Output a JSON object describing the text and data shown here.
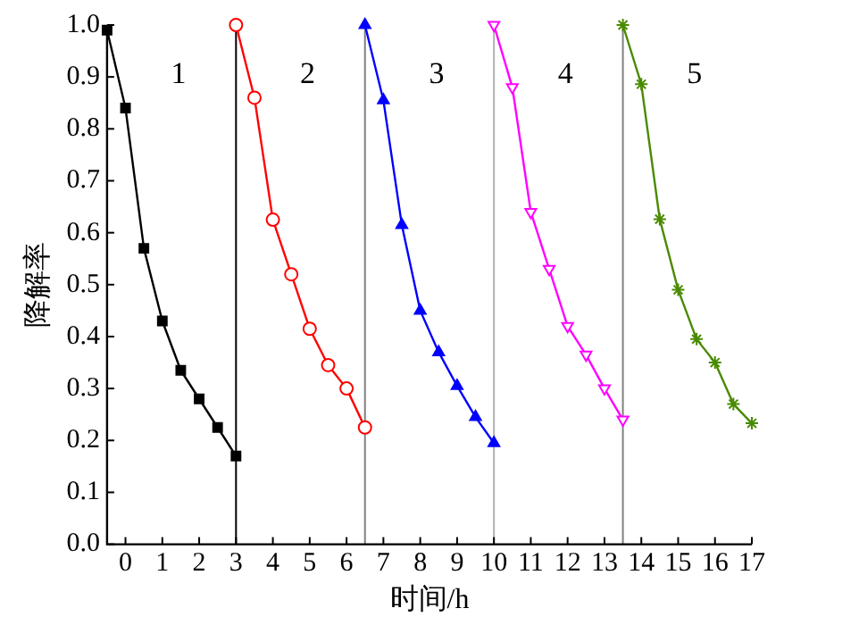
{
  "chart_data": {
    "type": "line",
    "xlabel": "时间/h",
    "ylabel": "降解率",
    "xlim": [
      -0.5,
      17
    ],
    "xticks": [
      0,
      1,
      2,
      3,
      4,
      5,
      6,
      7,
      8,
      9,
      10,
      11,
      12,
      13,
      14,
      15,
      16,
      17
    ],
    "ylim": [
      0,
      1.0
    ],
    "yticks": [
      {
        "value": 0,
        "label": "0.0"
      },
      {
        "value": 0.1,
        "label": "0.1"
      },
      {
        "value": 0.2,
        "label": "0.2"
      },
      {
        "value": 0.3,
        "label": "0.3"
      },
      {
        "value": 0.4,
        "label": "0.4"
      },
      {
        "value": 0.5,
        "label": "0.5"
      },
      {
        "value": 0.6,
        "label": "0.6"
      },
      {
        "value": 0.7,
        "label": "0.7"
      },
      {
        "value": 0.8,
        "label": "0.8"
      },
      {
        "value": 0.9,
        "label": "0.9"
      },
      {
        "value": 1.0,
        "label": "1.0"
      }
    ],
    "grid": false,
    "legend": false,
    "series": [
      {
        "color": "#000000",
        "marker": "square",
        "x": [
          -0.5,
          0,
          0.5,
          1,
          1.5,
          2,
          2.5,
          3
        ],
        "values": [
          0.99,
          0.84,
          0.57,
          0.43,
          0.335,
          0.28,
          0.225,
          0.17
        ]
      },
      {
        "color": "#ff0000",
        "marker": "circle",
        "x": [
          3,
          3.5,
          4,
          4.5,
          5,
          5.5,
          6,
          6.5
        ],
        "values": [
          1.0,
          0.86,
          0.625,
          0.52,
          0.415,
          0.345,
          0.3,
          0.225
        ]
      },
      {
        "color": "#0000ff",
        "marker": "triangle",
        "x": [
          6.5,
          7,
          7.5,
          8,
          8.5,
          9,
          9.5,
          10
        ],
        "values": [
          1.0,
          0.855,
          0.615,
          0.45,
          0.37,
          0.305,
          0.245,
          0.195
        ]
      },
      {
        "color": "#ff00ff",
        "marker": "triangle_down",
        "x": [
          10,
          10.5,
          11,
          11.5,
          12,
          12.5,
          13,
          13.5
        ],
        "values": [
          1.0,
          0.88,
          0.64,
          0.53,
          0.42,
          0.365,
          0.3,
          0.24
        ]
      },
      {
        "color": "#4a8a00",
        "marker": "cross",
        "x": [
          13.5,
          14,
          14.5,
          15,
          15.5,
          16,
          16.5,
          17
        ],
        "values": [
          1.0,
          0.886,
          0.626,
          0.49,
          0.395,
          0.35,
          0.27,
          0.233
        ]
      }
    ],
    "ref_lines": [
      {
        "axis": "x",
        "value": 3,
        "color": "#000000"
      },
      {
        "axis": "x",
        "value": 6.5,
        "color": "#808080"
      },
      {
        "axis": "x",
        "value": 10,
        "color": "#b0b0b0"
      },
      {
        "axis": "x",
        "value": 13.5,
        "color": "#808080"
      }
    ],
    "annotations": [
      "1",
      "2",
      "3",
      "4",
      "5"
    ]
  }
}
